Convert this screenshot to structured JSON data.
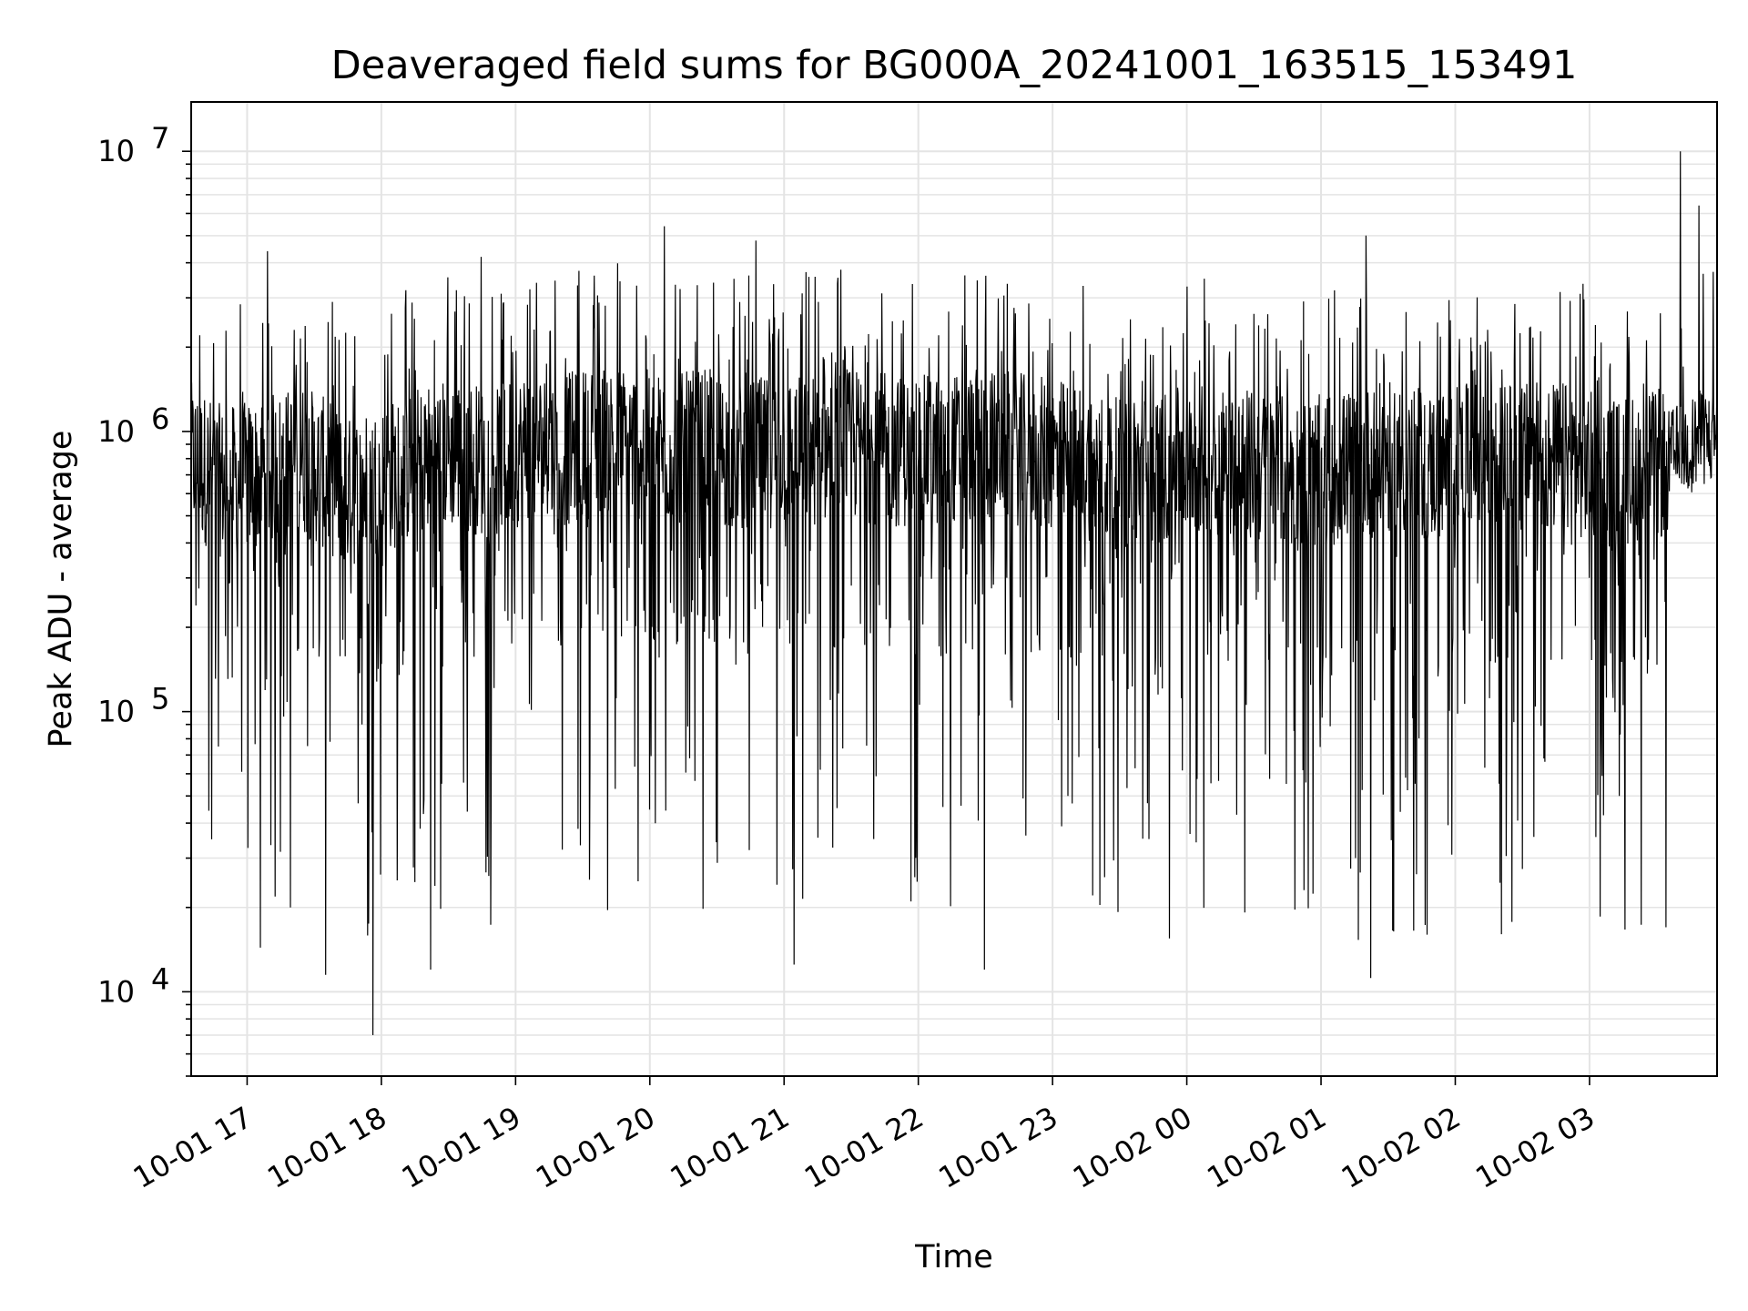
{
  "chart_data": {
    "type": "line",
    "title": "Deaveraged field sums for BG000A_20241001_163515_153491",
    "xlabel": "Time",
    "ylabel": "Peak ADU - average",
    "yscale": "log",
    "ylim": [
      5000,
      15000000
    ],
    "xlim": [
      "2024-10-01 16:35",
      "2024-10-02 03:57"
    ],
    "x_ticks": [
      "10-01 17",
      "10-01 18",
      "10-01 19",
      "10-01 20",
      "10-01 21",
      "10-01 22",
      "10-01 23",
      "10-02 00",
      "10-02 01",
      "10-02 02",
      "10-02 03"
    ],
    "y_ticks": [
      {
        "base": "10",
        "exp": "4",
        "value": 10000
      },
      {
        "base": "10",
        "exp": "5",
        "value": 100000
      },
      {
        "base": "10",
        "exp": "6",
        "value": 1000000
      },
      {
        "base": "10",
        "exp": "7",
        "value": 10000000
      }
    ],
    "grid": true,
    "line_color": "#000000",
    "series": [
      {
        "x": [
          "2024-10-01 16:35",
          "2024-10-01 16:50",
          "2024-10-01 17:05",
          "2024-10-01 17:15",
          "2024-10-01 17:25",
          "2024-10-01 17:35",
          "2024-10-01 17:45",
          "2024-10-01 17:55",
          "2024-10-01 18:05",
          "2024-10-01 18:20",
          "2024-10-01 18:35",
          "2024-10-01 18:50",
          "2024-10-01 19:05",
          "2024-10-01 19:20",
          "2024-10-01 19:40",
          "2024-10-01 19:55",
          "2024-10-01 20:10",
          "2024-10-01 20:25",
          "2024-10-01 20:40",
          "2024-10-01 20:55",
          "2024-10-01 21:10",
          "2024-10-01 21:30",
          "2024-10-01 21:50",
          "2024-10-01 22:10",
          "2024-10-01 22:30",
          "2024-10-01 22:50",
          "2024-10-01 23:10",
          "2024-10-01 23:30",
          "2024-10-01 23:50",
          "2024-10-02 00:10",
          "2024-10-02 00:30",
          "2024-10-02 00:50",
          "2024-10-02 01:10",
          "2024-10-02 01:30",
          "2024-10-02 01:50",
          "2024-10-02 02:10",
          "2024-10-02 02:30",
          "2024-10-02 02:50",
          "2024-10-02 03:10",
          "2024-10-02 03:30",
          "2024-10-02 03:50"
        ],
        "y": [
          800000,
          650000,
          700000,
          750000,
          800000,
          700000,
          600000,
          650000,
          700000,
          800000,
          850000,
          750000,
          900000,
          850000,
          950000,
          900000,
          850000,
          900000,
          800000,
          850000,
          850000,
          900000,
          850000,
          850000,
          900000,
          850000,
          800000,
          700000,
          750000,
          800000,
          750000,
          700000,
          750000,
          800000,
          750000,
          800000,
          800000,
          800000,
          700000,
          750000,
          950000
        ],
        "peaks": [
          4400000,
          5400000,
          4800000,
          4200000,
          4500000,
          5000000,
          10000000,
          6400000
        ],
        "troughs": [
          7000,
          11500,
          12000,
          12500,
          11200,
          12000,
          16000,
          15500,
          20000
        ]
      }
    ]
  }
}
